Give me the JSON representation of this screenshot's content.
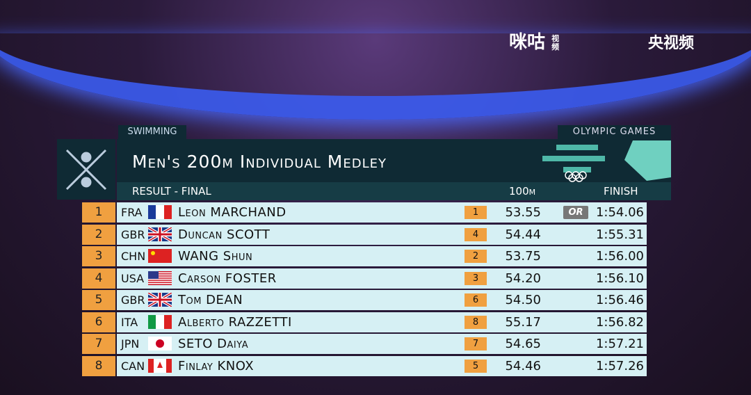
{
  "brand_left": "咪咕",
  "brand_left_sub": "视频",
  "brand_right": "央视频",
  "header": {
    "sport": "SWIMMING",
    "games": "OLYMPIC GAMES",
    "title": "Men's 200m Individual Medley",
    "stage": "RESULT - FINAL",
    "split_label": "100m",
    "finish_label": "FINISH"
  },
  "table": {
    "rows": [
      {
        "rank": "1",
        "country": "FRA",
        "name": "Leon MARCHAND",
        "split_rank": "1",
        "split": "53.55",
        "record": "OR",
        "finish": "1:54.06"
      },
      {
        "rank": "2",
        "country": "GBR",
        "name": "Duncan SCOTT",
        "split_rank": "4",
        "split": "54.44",
        "finish": "1:55.31"
      },
      {
        "rank": "3",
        "country": "CHN",
        "name": "WANG Shun",
        "split_rank": "2",
        "split": "53.75",
        "finish": "1:56.00"
      },
      {
        "rank": "4",
        "country": "USA",
        "name": "Carson FOSTER",
        "split_rank": "3",
        "split": "54.20",
        "finish": "1:56.10"
      },
      {
        "rank": "5",
        "country": "GBR",
        "name": "Tom DEAN",
        "split_rank": "6",
        "split": "54.50",
        "finish": "1:56.46"
      },
      {
        "rank": "6",
        "country": "ITA",
        "name": "Alberto RAZZETTI",
        "split_rank": "8",
        "split": "55.17",
        "finish": "1:56.82"
      },
      {
        "rank": "7",
        "country": "JPN",
        "name": "SETO Daiya",
        "split_rank": "7",
        "split": "54.65",
        "finish": "1:57.21"
      },
      {
        "rank": "8",
        "country": "CAN",
        "name": "Finlay KNOX",
        "split_rank": "5",
        "split": "54.46",
        "finish": "1:57.26"
      }
    ]
  }
}
